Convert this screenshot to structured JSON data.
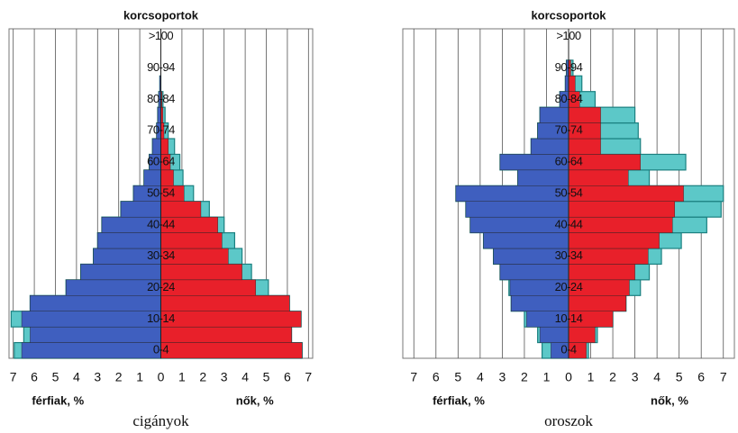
{
  "chart_data": [
    {
      "type": "pyramid",
      "title": "korcsoportok",
      "caption": "cigányok",
      "xlabel_left": "férfiak, %",
      "xlabel_right": "nők, %",
      "categories": [
        "0-4",
        null,
        "10-14",
        null,
        "20-24",
        null,
        "30-34",
        null,
        "40-44",
        null,
        "50-54",
        null,
        "60-64",
        null,
        "70-74",
        null,
        "80-84",
        null,
        "90-94",
        null,
        ">100"
      ],
      "series": [
        {
          "color": "#5cc8c8",
          "values": [
            -6.95,
            -6.5,
            -7.1,
            -6.2,
            -4.5,
            -3.8,
            -3.2,
            -3.0,
            -2.8,
            -1.9,
            -1.3,
            -0.8,
            -0.55,
            -0.4,
            -0.2,
            -0.15,
            -0.1,
            -0.05,
            0,
            0,
            0
          ]
        },
        {
          "color": "#3f5fbf",
          "values": [
            -6.6,
            -6.2,
            -6.6,
            -6.2,
            -4.5,
            -3.8,
            -3.2,
            -3.0,
            -2.8,
            -1.9,
            -1.3,
            -0.8,
            -0.55,
            -0.4,
            -0.2,
            -0.15,
            -0.1,
            -0.05,
            0,
            0,
            0
          ]
        },
        {
          "color": "#5cc8c8",
          "values": [
            6.7,
            6.2,
            6.65,
            6.1,
            5.1,
            4.3,
            3.85,
            3.5,
            3.0,
            2.3,
            1.55,
            1.05,
            0.9,
            0.65,
            0.35,
            0.2,
            0.1,
            0,
            0,
            0,
            0
          ]
        },
        {
          "color": "#e8202a",
          "values": [
            6.7,
            6.2,
            6.65,
            6.1,
            4.5,
            3.85,
            3.2,
            2.9,
            2.7,
            1.9,
            1.1,
            0.6,
            0.45,
            0.35,
            0.15,
            0.1,
            0.05,
            0,
            0,
            0,
            0
          ]
        }
      ],
      "xlim": [
        -7.2,
        7.2
      ],
      "xticks": [
        {
          "value": -7,
          "label": "7"
        },
        {
          "value": -6,
          "label": "6"
        },
        {
          "value": -5,
          "label": "5"
        },
        {
          "value": -4,
          "label": "4"
        },
        {
          "value": -3,
          "label": "3"
        },
        {
          "value": -2,
          "label": "2"
        },
        {
          "value": -1,
          "label": "1"
        },
        0,
        1,
        2,
        3,
        4,
        5,
        6,
        7
      ],
      "grid": true
    },
    {
      "type": "pyramid",
      "title": "korcsoportok",
      "caption": "oroszok",
      "xlabel_left": "férfiak, %",
      "xlabel_right": "nők, %",
      "categories": [
        "0-4",
        null,
        "10-14",
        null,
        "20-24",
        null,
        "30-34",
        null,
        "40-44",
        null,
        "50-54",
        null,
        "60-64",
        null,
        "70-74",
        null,
        "80-84",
        null,
        "90-94",
        null,
        ">100"
      ],
      "series": [
        {
          "color": "#5cc8c8",
          "values": [
            -1.2,
            -1.4,
            -2.0,
            -2.6,
            -2.7,
            -3.1,
            -3.4,
            -3.85,
            -4.45,
            -4.65,
            -5.1,
            -2.3,
            -3.1,
            -1.7,
            -1.4,
            -1.3,
            -0.4,
            -0.15,
            -0.1,
            0,
            0
          ]
        },
        {
          "color": "#3f5fbf",
          "values": [
            -0.8,
            -1.3,
            -1.9,
            -2.6,
            -2.65,
            -3.1,
            -3.4,
            -3.85,
            -4.45,
            -4.65,
            -5.1,
            -2.3,
            -3.1,
            -1.7,
            -1.4,
            -1.3,
            -0.4,
            -0.15,
            -0.1,
            0,
            0
          ]
        },
        {
          "color": "#5cc8c8",
          "values": [
            0.9,
            1.3,
            2.0,
            2.6,
            3.25,
            3.65,
            4.2,
            5.1,
            6.25,
            6.9,
            7.0,
            3.65,
            5.3,
            3.25,
            3.15,
            3.0,
            1.2,
            0.6,
            0.2,
            0,
            0
          ]
        },
        {
          "color": "#e8202a",
          "values": [
            0.8,
            1.2,
            2.0,
            2.6,
            2.75,
            3.0,
            3.6,
            4.1,
            4.7,
            4.8,
            5.2,
            2.7,
            3.25,
            1.45,
            1.45,
            1.45,
            0.5,
            0.3,
            0.1,
            0,
            0
          ]
        }
      ],
      "xlim": [
        -7.5,
        7.5
      ],
      "xticks": [
        {
          "value": -7,
          "label": "7"
        },
        {
          "value": -6,
          "label": "6"
        },
        {
          "value": -5,
          "label": "5"
        },
        {
          "value": -4,
          "label": "4"
        },
        {
          "value": -3,
          "label": "3"
        },
        {
          "value": -2,
          "label": "2"
        },
        {
          "value": -1,
          "label": "1"
        },
        0,
        1,
        2,
        3,
        4,
        5,
        6,
        7
      ],
      "grid": true
    }
  ]
}
